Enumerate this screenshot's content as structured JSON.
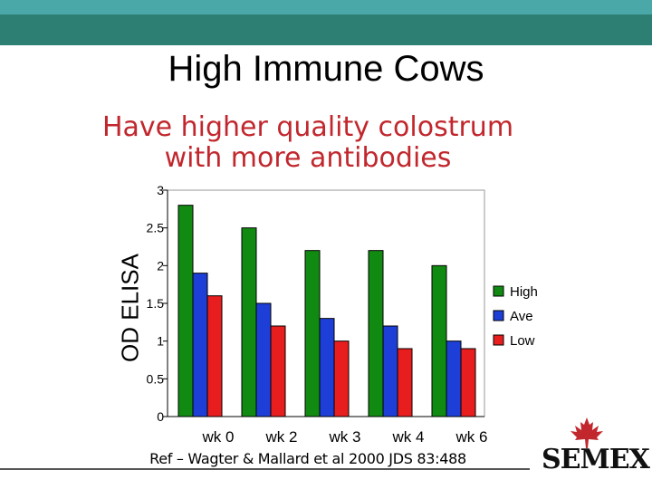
{
  "header": {
    "title": "High Immune Cows",
    "subtitle": "Have higher quality colostrum with more antibodies"
  },
  "reference": "Ref – Wagter & Mallard et al 2000 JDS 83:488",
  "logo": {
    "text": "SEMEX",
    "icon": "maple-leaf-icon"
  },
  "colors": {
    "High": "#118a11",
    "Ave": "#1d3fd8",
    "Low": "#e81e1e",
    "top_bar": "#2e7f73"
  },
  "chart_data": {
    "type": "bar",
    "title": "",
    "xlabel": "",
    "ylabel": "OD ELISA",
    "ylim": [
      0,
      3
    ],
    "yticks": [
      "0",
      "0.5",
      "1",
      "1.5",
      "2",
      "2.5",
      "3"
    ],
    "categories": [
      "wk 0",
      "wk 2",
      "wk 3",
      "wk 4",
      "wk 6"
    ],
    "series": [
      {
        "name": "High",
        "values": [
          2.8,
          2.5,
          2.2,
          2.2,
          2.0
        ]
      },
      {
        "name": "Ave",
        "values": [
          1.9,
          1.5,
          1.3,
          1.2,
          1.0
        ]
      },
      {
        "name": "Low",
        "values": [
          1.6,
          1.2,
          1.0,
          0.9,
          0.9
        ]
      }
    ],
    "legend": "right",
    "grid": false
  }
}
